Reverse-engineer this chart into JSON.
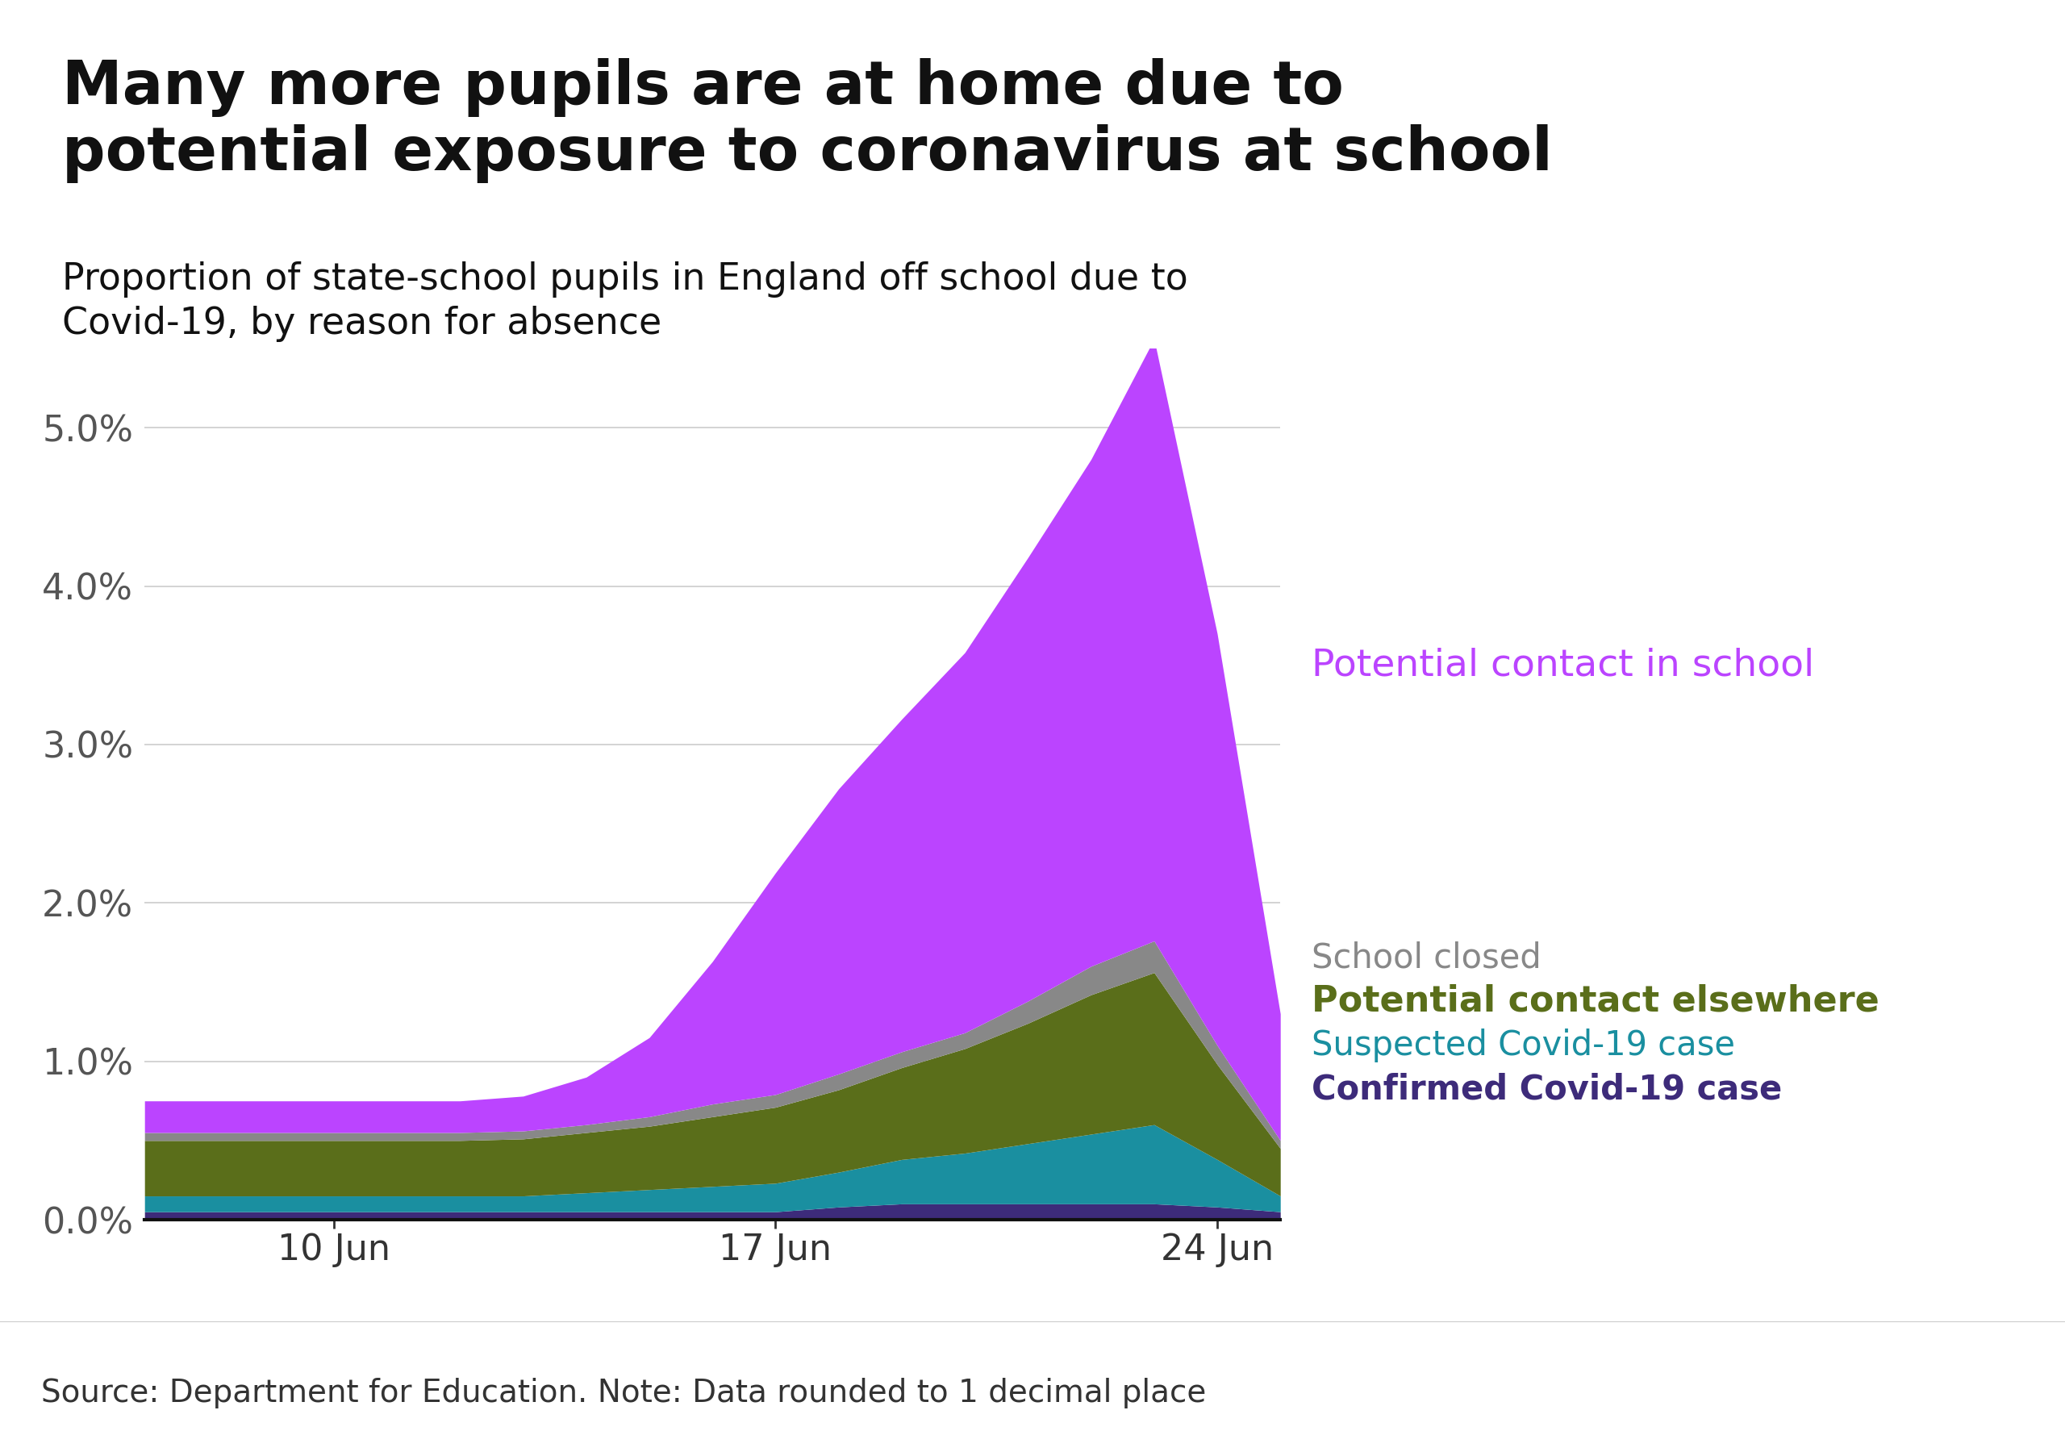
{
  "title": "Many more pupils are at home due to\npotential exposure to coronavirus at school",
  "subtitle": "Proportion of state-school pupils in England off school due to\nCovid-19, by reason for absence",
  "source": "Source: Department for Education. Note: Data rounded to 1 decimal place",
  "x_labels": [
    "10 Jun",
    "17 Jun",
    "24 Jun"
  ],
  "dates": [
    0,
    1,
    2,
    3,
    4,
    5,
    6,
    7,
    8,
    9,
    10,
    11,
    12,
    13,
    14,
    15,
    16,
    17,
    18
  ],
  "x_tick_positions": [
    3,
    10,
    17
  ],
  "confirmed_covid": [
    0.05,
    0.05,
    0.05,
    0.05,
    0.05,
    0.05,
    0.05,
    0.05,
    0.05,
    0.05,
    0.05,
    0.08,
    0.1,
    0.1,
    0.1,
    0.1,
    0.1,
    0.08,
    0.05
  ],
  "suspected_covid": [
    0.1,
    0.1,
    0.1,
    0.1,
    0.1,
    0.1,
    0.1,
    0.12,
    0.14,
    0.16,
    0.18,
    0.22,
    0.28,
    0.32,
    0.38,
    0.44,
    0.5,
    0.3,
    0.1
  ],
  "potential_contact_elsewhere": [
    0.35,
    0.35,
    0.35,
    0.35,
    0.35,
    0.35,
    0.36,
    0.38,
    0.4,
    0.44,
    0.48,
    0.52,
    0.58,
    0.66,
    0.76,
    0.88,
    0.96,
    0.6,
    0.3
  ],
  "school_closed": [
    0.05,
    0.05,
    0.05,
    0.05,
    0.05,
    0.05,
    0.05,
    0.05,
    0.06,
    0.08,
    0.08,
    0.1,
    0.1,
    0.1,
    0.14,
    0.18,
    0.2,
    0.12,
    0.05
  ],
  "potential_contact_school": [
    0.2,
    0.2,
    0.2,
    0.2,
    0.2,
    0.2,
    0.22,
    0.3,
    0.5,
    0.9,
    1.4,
    1.8,
    2.1,
    2.4,
    2.8,
    3.2,
    3.8,
    2.6,
    0.8
  ],
  "colors": {
    "confirmed_covid": "#3d2b7a",
    "suspected_covid": "#1a8fa0",
    "potential_contact_elsewhere": "#5a6e1a",
    "school_closed": "#888888",
    "potential_contact_school": "#bb44ff"
  },
  "legend_labels": {
    "potential_contact_school": "Potential contact in school",
    "school_closed": "School closed",
    "potential_contact_elsewhere": "Potential contact elsewhere",
    "suspected_covid": "Suspected Covid-19 case",
    "confirmed_covid": "Confirmed Covid-19 case"
  },
  "legend_colors": {
    "potential_contact_school": "#bb44ff",
    "school_closed": "#888888",
    "potential_contact_elsewhere": "#5a6e1a",
    "suspected_covid": "#1a8fa0",
    "confirmed_covid": "#3d2b7a"
  },
  "ylim": [
    0,
    5.5
  ],
  "yticks": [
    0.0,
    1.0,
    2.0,
    3.0,
    4.0,
    5.0
  ],
  "background_color": "#ffffff",
  "title_fontsize": 54,
  "subtitle_fontsize": 33,
  "source_fontsize": 28,
  "tick_fontsize": 32,
  "legend_fontsize": 30
}
